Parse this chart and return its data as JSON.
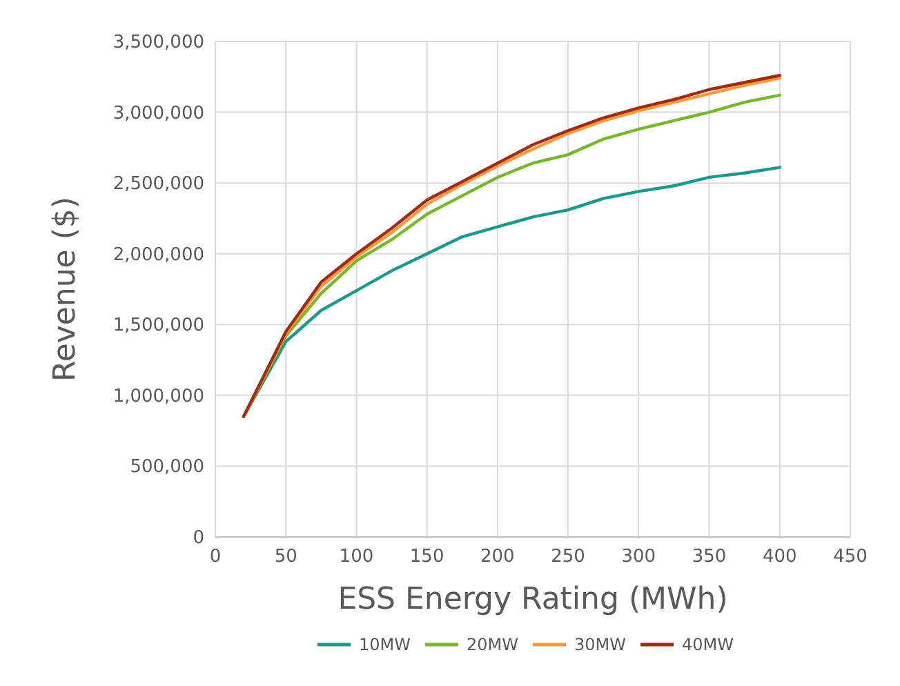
{
  "chart_data": {
    "type": "line",
    "xlabel": "ESS Energy Rating (MWh)",
    "ylabel": "Revenue ($)",
    "x": [
      20,
      50,
      75,
      100,
      125,
      150,
      175,
      200,
      225,
      250,
      275,
      300,
      325,
      350,
      375,
      400
    ],
    "xlim": [
      0,
      450
    ],
    "xticks": [
      0,
      50,
      100,
      150,
      200,
      250,
      300,
      350,
      400,
      450
    ],
    "ylim": [
      0,
      3500000
    ],
    "yticks": [
      {
        "value": 0,
        "label": "0"
      },
      {
        "value": 500000,
        "label": "500,000"
      },
      {
        "value": 1000000,
        "label": "1,000,000"
      },
      {
        "value": 1500000,
        "label": "1,500,000"
      },
      {
        "value": 2000000,
        "label": "2,000,000"
      },
      {
        "value": 2500000,
        "label": "2,500,000"
      },
      {
        "value": 3000000,
        "label": "3,000,000"
      },
      {
        "value": 3500000,
        "label": "3,500,000"
      }
    ],
    "grid": true,
    "legend": "bottom",
    "marker": "none",
    "line_style": "solid",
    "series": [
      {
        "name": "10MW",
        "color": "#1a9a8a",
        "values": [
          850000,
          1380000,
          1600000,
          1740000,
          1880000,
          2000000,
          2120000,
          2190000,
          2260000,
          2310000,
          2390000,
          2440000,
          2480000,
          2540000,
          2570000,
          2610000
        ]
      },
      {
        "name": "20MW",
        "color": "#77b82a",
        "values": [
          850000,
          1420000,
          1720000,
          1950000,
          2100000,
          2280000,
          2410000,
          2540000,
          2640000,
          2700000,
          2810000,
          2880000,
          2940000,
          3000000,
          3070000,
          3120000
        ]
      },
      {
        "name": "30MW",
        "color": "#f79a3e",
        "values": [
          850000,
          1440000,
          1770000,
          1980000,
          2150000,
          2350000,
          2490000,
          2620000,
          2740000,
          2850000,
          2940000,
          3010000,
          3070000,
          3130000,
          3190000,
          3240000
        ]
      },
      {
        "name": "40MW",
        "color": "#a52a0f",
        "values": [
          850000,
          1450000,
          1800000,
          2000000,
          2180000,
          2380000,
          2510000,
          2640000,
          2770000,
          2870000,
          2960000,
          3030000,
          3090000,
          3160000,
          3210000,
          3260000
        ]
      }
    ]
  }
}
